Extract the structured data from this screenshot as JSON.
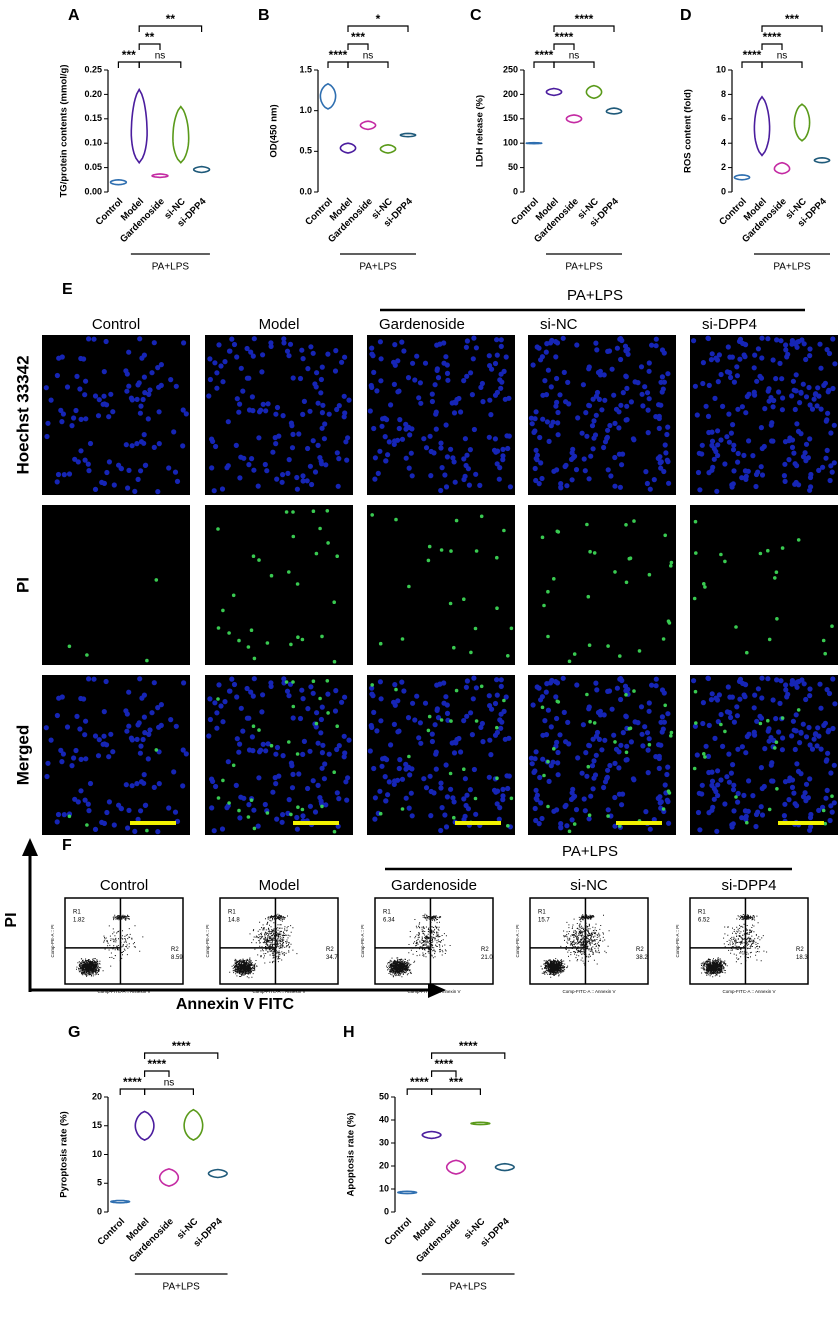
{
  "chart_data": [
    {
      "type": "violin",
      "panel": "A",
      "y_label": "TG/protein contents (mmol/g)",
      "categories": [
        "Control",
        "Model",
        "Gardenoside",
        "si-NC",
        "si-DPP4"
      ],
      "colors": [
        "#2f6fb0",
        "#4b1d9e",
        "#c42ba3",
        "#5a9a1a",
        "#1f5a7a"
      ],
      "values": [
        0.02,
        0.12,
        0.033,
        0.11,
        0.046
      ],
      "low": [
        0.015,
        0.06,
        0.03,
        0.06,
        0.04
      ],
      "high": [
        0.025,
        0.21,
        0.037,
        0.175,
        0.052
      ],
      "ylim": [
        0,
        0.25
      ],
      "yticks": [
        {
          "value": 0,
          "label": "0.00"
        },
        {
          "value": 0.05,
          "label": "0.05"
        },
        {
          "value": 0.1,
          "label": "0.10"
        },
        {
          "value": 0.15,
          "label": "0.15"
        },
        {
          "value": 0.2,
          "label": "0.20"
        },
        {
          "value": 0.25,
          "label": "0.25"
        }
      ],
      "group_label": "PA+LPS",
      "comparisons": [
        {
          "pair": [
            "Control",
            "Model"
          ],
          "label": "***"
        },
        {
          "pair": [
            "Model",
            "si-NC"
          ],
          "label": "ns"
        },
        {
          "pair": [
            "Model",
            "Gardenoside"
          ],
          "label": "**"
        },
        {
          "pair": [
            "Model",
            "si-DPP4"
          ],
          "label": "**"
        }
      ]
    },
    {
      "type": "violin",
      "panel": "B",
      "y_label": "OD(450 nm)",
      "categories": [
        "Control",
        "Model",
        "Gardenoside",
        "si-NC",
        "si-DPP4"
      ],
      "colors": [
        "#2f6fb0",
        "#4b1d9e",
        "#c42ba3",
        "#5a9a1a",
        "#1f5a7a"
      ],
      "values": [
        1.18,
        0.54,
        0.82,
        0.53,
        0.7
      ],
      "low": [
        1.02,
        0.48,
        0.77,
        0.48,
        0.68
      ],
      "high": [
        1.33,
        0.6,
        0.87,
        0.58,
        0.72
      ],
      "ylim": [
        0,
        1.5
      ],
      "yticks": [
        {
          "value": 0,
          "label": "0.0"
        },
        {
          "value": 0.5,
          "label": "0.5"
        },
        {
          "value": 1,
          "label": "1.0"
        },
        {
          "value": 1.5,
          "label": "1.5"
        }
      ],
      "group_label": "PA+LPS",
      "comparisons": [
        {
          "pair": [
            "Control",
            "Model"
          ],
          "label": "****"
        },
        {
          "pair": [
            "Model",
            "si-NC"
          ],
          "label": "ns"
        },
        {
          "pair": [
            "Model",
            "Gardenoside"
          ],
          "label": "***"
        },
        {
          "pair": [
            "Model",
            "si-DPP4"
          ],
          "label": "*"
        }
      ]
    },
    {
      "type": "violin",
      "panel": "C",
      "y_label": "LDH release (%)",
      "categories": [
        "Control",
        "Model",
        "Gardenoside",
        "si-NC",
        "si-DPP4"
      ],
      "colors": [
        "#2f6fb0",
        "#4b1d9e",
        "#c42ba3",
        "#5a9a1a",
        "#1f5a7a"
      ],
      "values": [
        100,
        205,
        150,
        205,
        165
      ],
      "low": [
        99,
        198,
        142,
        192,
        160
      ],
      "high": [
        101,
        212,
        158,
        218,
        172
      ],
      "ylim": [
        0,
        250
      ],
      "yticks": [
        0,
        50,
        100,
        150,
        200,
        250
      ],
      "group_label": "PA+LPS",
      "comparisons": [
        {
          "pair": [
            "Control",
            "Model"
          ],
          "label": "****"
        },
        {
          "pair": [
            "Model",
            "si-NC"
          ],
          "label": "ns"
        },
        {
          "pair": [
            "Model",
            "Gardenoside"
          ],
          "label": "****"
        },
        {
          "pair": [
            "Model",
            "si-DPP4"
          ],
          "label": "****"
        }
      ]
    },
    {
      "type": "violin",
      "panel": "D",
      "y_label": "ROS content (fold)",
      "categories": [
        "Control",
        "Model",
        "Gardenoside",
        "si-NC",
        "si-DPP4"
      ],
      "colors": [
        "#2f6fb0",
        "#4b1d9e",
        "#c42ba3",
        "#5a9a1a",
        "#1f5a7a"
      ],
      "values": [
        1.2,
        5.2,
        1.9,
        5.7,
        2.6
      ],
      "low": [
        1.0,
        3.0,
        1.5,
        4.2,
        2.4
      ],
      "high": [
        1.4,
        7.8,
        2.4,
        7.2,
        2.8
      ],
      "ylim": [
        0,
        10
      ],
      "yticks": [
        0,
        2,
        4,
        6,
        8,
        10
      ],
      "group_label": "PA+LPS",
      "comparisons": [
        {
          "pair": [
            "Control",
            "Model"
          ],
          "label": "****"
        },
        {
          "pair": [
            "Model",
            "si-NC"
          ],
          "label": "ns"
        },
        {
          "pair": [
            "Model",
            "Gardenoside"
          ],
          "label": "****"
        },
        {
          "pair": [
            "Model",
            "si-DPP4"
          ],
          "label": "***"
        }
      ]
    },
    {
      "type": "violin",
      "panel": "G",
      "y_label": "Pyroptosis rate (%)",
      "categories": [
        "Control",
        "Model",
        "Gardenoside",
        "si-NC",
        "si-DPP4"
      ],
      "colors": [
        "#2f6fb0",
        "#4b1d9e",
        "#c42ba3",
        "#5a9a1a",
        "#1f5a7a"
      ],
      "values": [
        1.8,
        15,
        6,
        15,
        6.7
      ],
      "low": [
        1.6,
        12.5,
        4.5,
        12.5,
        6
      ],
      "high": [
        2,
        17.5,
        7.5,
        17.8,
        7.4
      ],
      "ylim": [
        0,
        20
      ],
      "yticks": [
        0,
        5,
        10,
        15,
        20
      ],
      "group_label": "PA+LPS",
      "comparisons": [
        {
          "pair": [
            "Control",
            "Model"
          ],
          "label": "****"
        },
        {
          "pair": [
            "Model",
            "si-NC"
          ],
          "label": "ns"
        },
        {
          "pair": [
            "Model",
            "Gardenoside"
          ],
          "label": "****"
        },
        {
          "pair": [
            "Model",
            "si-DPP4"
          ],
          "label": "****"
        }
      ]
    },
    {
      "type": "violin",
      "panel": "H",
      "y_label": "Apoptosis rate (%)",
      "categories": [
        "Control",
        "Model",
        "Gardenoside",
        "si-NC",
        "si-DPP4"
      ],
      "colors": [
        "#2f6fb0",
        "#4b1d9e",
        "#c42ba3",
        "#5a9a1a",
        "#1f5a7a"
      ],
      "values": [
        8.5,
        33.5,
        19.5,
        38.5,
        19.5
      ],
      "low": [
        8,
        32,
        16.5,
        38,
        18
      ],
      "high": [
        9,
        35,
        22.5,
        39,
        21
      ],
      "ylim": [
        0,
        50
      ],
      "yticks": [
        0,
        10,
        20,
        30,
        40,
        50
      ],
      "group_label": "PA+LPS",
      "comparisons": [
        {
          "pair": [
            "Control",
            "Model"
          ],
          "label": "****"
        },
        {
          "pair": [
            "Model",
            "si-NC"
          ],
          "label": "***"
        },
        {
          "pair": [
            "Model",
            "Gardenoside"
          ],
          "label": "****"
        },
        {
          "pair": [
            "Model",
            "si-DPP4"
          ],
          "label": "****"
        }
      ]
    }
  ],
  "panel_e": {
    "panel": "E",
    "group_label": "PA+LPS",
    "columns": [
      "Control",
      "Model",
      "Gardenoside",
      "si-NC",
      "si-DPP4"
    ],
    "rows": [
      "Hoechst 33342",
      "PI",
      "Merged"
    ]
  },
  "panel_f": {
    "panel": "F",
    "group_label": "PA+LPS",
    "columns": [
      "Control",
      "Model",
      "Gardenoside",
      "si-NC",
      "si-DPP4"
    ],
    "y_axis": "PI",
    "x_axis": "Annexin V FITC",
    "plot_y_label": "Comp-PE-A :: PI",
    "plot_x_label": "Comp-FITC-A :: Annexin V",
    "plots": [
      {
        "r1_name": "R1",
        "r1": "1.82",
        "r2_name": "R2",
        "r2": "8.59"
      },
      {
        "r1_name": "R1",
        "r1": "14.8",
        "r2_name": "R2",
        "r2": "34.7"
      },
      {
        "r1_name": "R1",
        "r1": "6.34",
        "r2_name": "R2",
        "r2": "21.0"
      },
      {
        "r1_name": "R1",
        "r1": "15.7",
        "r2_name": "R2",
        "r2": "38.2"
      },
      {
        "r1_name": "R1",
        "r1": "6.52",
        "r2_name": "R2",
        "r2": "18.3"
      }
    ]
  }
}
